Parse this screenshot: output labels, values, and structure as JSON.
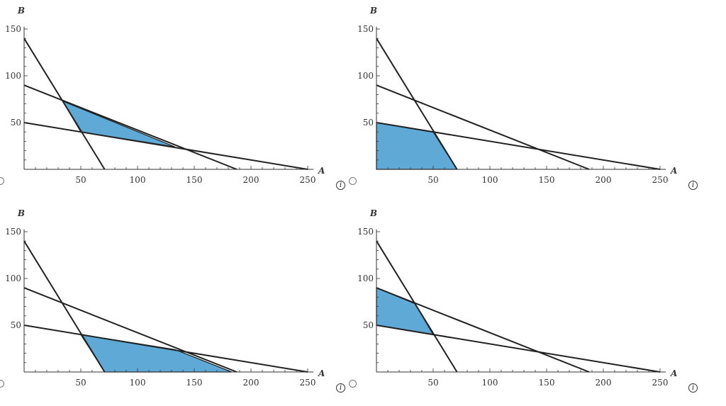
{
  "options": [
    {
      "id": "A",
      "info_icon": "info-icon",
      "chart_data": {
        "type": "area",
        "xlabel": "A",
        "ylabel": "B",
        "xlim": [
          0,
          255
        ],
        "ylim": [
          0,
          160
        ],
        "xticks": [
          "50",
          "100",
          "150",
          "200",
          "250"
        ],
        "yticks": [
          "50",
          "100",
          "150"
        ],
        "lines": [
          {
            "x": [
              0,
              71
            ],
            "y": [
              140,
              0
            ]
          },
          {
            "x": [
              0,
              187.5
            ],
            "y": [
              90,
              0
            ]
          },
          {
            "x": [
              0,
              250
            ],
            "y": [
              50,
              0
            ]
          }
        ],
        "feasible_region": {
          "x": [
            34,
            133,
            50
          ],
          "y": [
            73,
            24,
            40
          ]
        },
        "region_color": "#5ea9d6"
      }
    },
    {
      "id": "B",
      "info_icon": "info-icon",
      "chart_data": {
        "type": "area",
        "xlabel": "A",
        "ylabel": "B",
        "xlim": [
          0,
          255
        ],
        "ylim": [
          0,
          160
        ],
        "xticks": [
          "50",
          "100",
          "150",
          "200",
          "250"
        ],
        "yticks": [
          "50",
          "100",
          "150"
        ],
        "lines": [
          {
            "x": [
              0,
              71
            ],
            "y": [
              140,
              0
            ]
          },
          {
            "x": [
              0,
              187.5
            ],
            "y": [
              90,
              0
            ]
          },
          {
            "x": [
              0,
              250
            ],
            "y": [
              50,
              0
            ]
          }
        ],
        "feasible_region": {
          "x": [
            0,
            0,
            50,
            71
          ],
          "y": [
            0,
            50,
            40,
            0
          ]
        },
        "region_color": "#5ea9d6"
      }
    },
    {
      "id": "C",
      "info_icon": "info-icon",
      "chart_data": {
        "type": "area",
        "xlabel": "A",
        "ylabel": "B",
        "xlim": [
          0,
          255
        ],
        "ylim": [
          0,
          160
        ],
        "xticks": [
          "50",
          "100",
          "150",
          "200",
          "250"
        ],
        "yticks": [
          "50",
          "100",
          "150"
        ],
        "lines": [
          {
            "x": [
              0,
              71
            ],
            "y": [
              140,
              0
            ]
          },
          {
            "x": [
              0,
              187.5
            ],
            "y": [
              90,
              0
            ]
          },
          {
            "x": [
              0,
              250
            ],
            "y": [
              50,
              0
            ]
          }
        ],
        "feasible_region": {
          "x": [
            50,
            133,
            183,
            71
          ],
          "y": [
            40,
            24,
            0,
            0
          ]
        },
        "region_color": "#5ea9d6"
      }
    },
    {
      "id": "D",
      "info_icon": "info-icon",
      "chart_data": {
        "type": "area",
        "xlabel": "A",
        "ylabel": "B",
        "xlim": [
          0,
          255
        ],
        "ylim": [
          0,
          160
        ],
        "xticks": [
          "50",
          "100",
          "150",
          "200",
          "250"
        ],
        "yticks": [
          "50",
          "100",
          "150"
        ],
        "lines": [
          {
            "x": [
              0,
              71
            ],
            "y": [
              140,
              0
            ]
          },
          {
            "x": [
              0,
              187.5
            ],
            "y": [
              90,
              0
            ]
          },
          {
            "x": [
              0,
              250
            ],
            "y": [
              50,
              0
            ]
          }
        ],
        "feasible_region": {
          "x": [
            0,
            0,
            34,
            50
          ],
          "y": [
            50,
            90,
            73,
            40
          ]
        },
        "region_color": "#5ea9d6"
      }
    }
  ]
}
